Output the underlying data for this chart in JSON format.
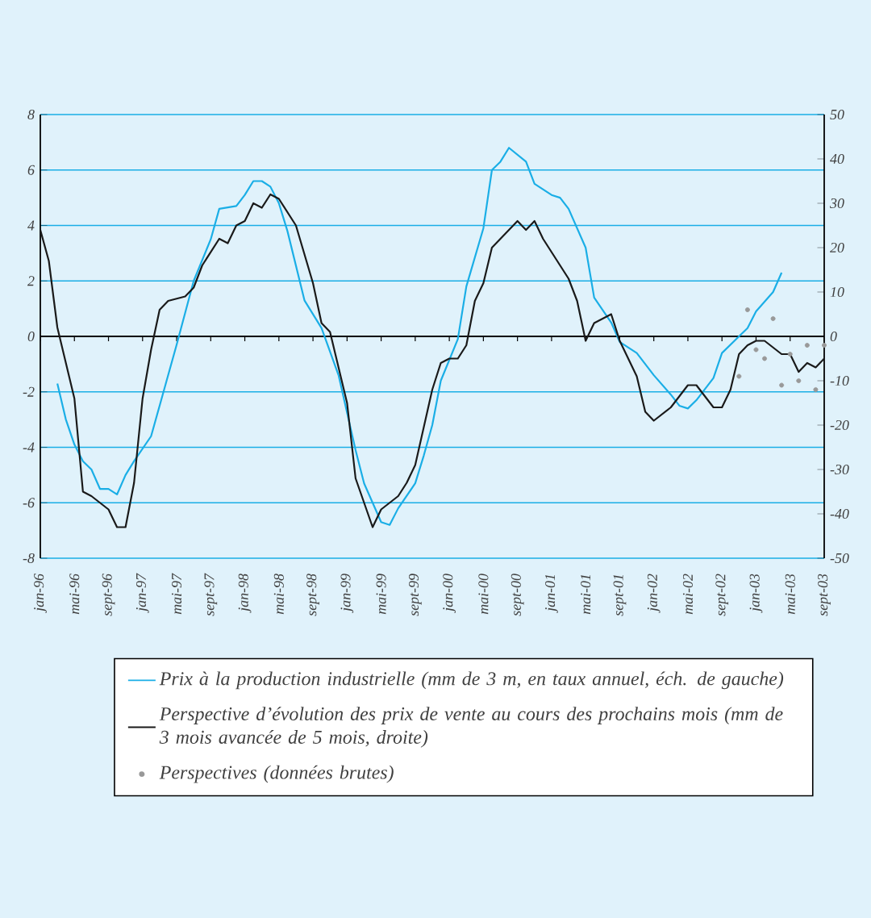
{
  "chart_data": {
    "type": "line",
    "xlim": [
      "1996-01",
      "2003-09"
    ],
    "xticks": [
      {
        "value": "1996-01",
        "label": "jan-96"
      },
      {
        "value": "1996-05",
        "label": "mai-96"
      },
      {
        "value": "1996-09",
        "label": "sept-96"
      },
      {
        "value": "1997-01",
        "label": "jan-97"
      },
      {
        "value": "1997-05",
        "label": "mai-97"
      },
      {
        "value": "1997-09",
        "label": "sept-97"
      },
      {
        "value": "1998-01",
        "label": "jan-98"
      },
      {
        "value": "1998-05",
        "label": "mai-98"
      },
      {
        "value": "1998-09",
        "label": "sept-98"
      },
      {
        "value": "1999-01",
        "label": "jan-99"
      },
      {
        "value": "1999-05",
        "label": "mai-99"
      },
      {
        "value": "1999-09",
        "label": "sept-99"
      },
      {
        "value": "2000-01",
        "label": "jan-00"
      },
      {
        "value": "2000-05",
        "label": "mai-00"
      },
      {
        "value": "2000-09",
        "label": "sept-00"
      },
      {
        "value": "2001-01",
        "label": "jan-01"
      },
      {
        "value": "2001-05",
        "label": "mai-01"
      },
      {
        "value": "2001-09",
        "label": "sept-01"
      },
      {
        "value": "2002-01",
        "label": "jan-02"
      },
      {
        "value": "2002-05",
        "label": "mai-02"
      },
      {
        "value": "2002-09",
        "label": "sept-02"
      },
      {
        "value": "2003-01",
        "label": "jan-03"
      },
      {
        "value": "2003-05",
        "label": "mai-03"
      },
      {
        "value": "2003-09",
        "label": "sept-03"
      }
    ],
    "ylim": [
      -8,
      8
    ],
    "yticks": [
      -8,
      -6,
      -4,
      -2,
      0,
      2,
      4,
      6,
      8
    ],
    "y2lim": [
      -50,
      50
    ],
    "y2ticks": [
      -50,
      -40,
      -30,
      -20,
      -10,
      0,
      10,
      20,
      30,
      40,
      50
    ],
    "grid": "y",
    "legend": "bottom",
    "series": [
      {
        "name": "Prix à la production industrielle (mm de 3 m, en taux annuel, éch. de gauche)",
        "color": "#1aaee6",
        "x": [
          "1996-03",
          "1996-04",
          "1996-05",
          "1996-06",
          "1996-07",
          "1996-08",
          "1996-09",
          "1996-10",
          "1996-11",
          "1996-12",
          "1997-02",
          "1997-03",
          "1997-05",
          "1997-07",
          "1997-09",
          "1997-10",
          "1997-12",
          "1998-01",
          "1998-02",
          "1998-03",
          "1998-04",
          "1998-05",
          "1998-06",
          "1998-08",
          "1998-10",
          "1998-12",
          "1999-02",
          "1999-03",
          "1999-05",
          "1999-06",
          "1999-07",
          "1999-09",
          "1999-10",
          "1999-11",
          "1999-12",
          "2000-02",
          "2000-03",
          "2000-05",
          "2000-06",
          "2000-07",
          "2000-08",
          "2000-10",
          "2000-11",
          "2001-01",
          "2001-02",
          "2001-03",
          "2001-05",
          "2001-06",
          "2001-08",
          "2001-09",
          "2001-11",
          "2002-01",
          "2002-03",
          "2002-04",
          "2002-05",
          "2002-06",
          "2002-08",
          "2002-09",
          "2002-11",
          "2002-12",
          "2003-01",
          "2003-03",
          "2003-04"
        ],
        "values": [
          -1.7,
          -3.0,
          -3.9,
          -4.5,
          -4.8,
          -5.5,
          -5.5,
          -5.7,
          -5.0,
          -4.5,
          -3.6,
          -2.5,
          -0.3,
          2.0,
          3.5,
          4.6,
          4.7,
          5.1,
          5.6,
          5.6,
          5.4,
          4.8,
          3.8,
          1.3,
          0.3,
          -1.4,
          -4.1,
          -5.3,
          -6.7,
          -6.8,
          -6.2,
          -5.3,
          -4.3,
          -3.2,
          -1.6,
          -0.1,
          1.8,
          3.9,
          6.0,
          6.3,
          6.8,
          6.3,
          5.5,
          5.1,
          5.0,
          4.6,
          3.2,
          1.4,
          0.5,
          -0.2,
          -0.6,
          -1.4,
          -2.1,
          -2.5,
          -2.6,
          -2.3,
          -1.5,
          -0.6,
          0.0,
          0.3,
          0.9,
          1.6,
          2.3
        ]
      },
      {
        "name": "Perspective d’évolution des prix de vente au cours des prochains mois (mm de 3 mois avancée de 5 mois, droite)",
        "color": "#1a1a1a",
        "axis": "y2",
        "x": [
          "1996-01",
          "1996-02",
          "1996-03",
          "1996-05",
          "1996-06",
          "1996-07",
          "1996-09",
          "1996-10",
          "1996-11",
          "1996-12",
          "1997-01",
          "1997-02",
          "1997-03",
          "1997-04",
          "1997-06",
          "1997-07",
          "1997-08",
          "1997-10",
          "1997-11",
          "1997-12",
          "1998-01",
          "1998-02",
          "1998-03",
          "1998-04",
          "1998-05",
          "1998-07",
          "1998-09",
          "1998-10",
          "1998-11",
          "1999-01",
          "1999-02",
          "1999-04",
          "1999-05",
          "1999-07",
          "1999-08",
          "1999-09",
          "1999-11",
          "1999-12",
          "2000-01",
          "2000-02",
          "2000-03",
          "2000-04",
          "2000-05",
          "2000-06",
          "2000-08",
          "2000-09",
          "2000-10",
          "2000-11",
          "2000-12",
          "2001-01",
          "2001-03",
          "2001-04",
          "2001-05",
          "2001-06",
          "2001-07",
          "2001-08",
          "2001-09",
          "2001-11",
          "2001-12",
          "2002-01",
          "2002-03",
          "2002-05",
          "2002-06",
          "2002-08",
          "2002-09",
          "2002-10",
          "2002-11",
          "2002-12",
          "2003-01",
          "2003-02",
          "2003-04",
          "2003-05",
          "2003-06",
          "2003-07",
          "2003-08",
          "2003-09"
        ],
        "values": [
          24,
          17,
          2,
          -14,
          -35,
          -36,
          -39,
          -43,
          -43,
          -33,
          -14,
          -3,
          6,
          8,
          9,
          11,
          16,
          22,
          21,
          25,
          26,
          30,
          29,
          32,
          31,
          25,
          12,
          3,
          1,
          -15,
          -32,
          -43,
          -39,
          -36,
          -33,
          -29,
          -12,
          -6,
          -5,
          -5,
          -2,
          8,
          12,
          20,
          24,
          26,
          24,
          26,
          22,
          19,
          13,
          8,
          -1,
          3,
          4,
          5,
          -1,
          -9,
          -17,
          -19,
          -16,
          -11,
          -11,
          -16,
          -16,
          -12,
          -4,
          -2,
          -1,
          -1,
          -4,
          -4,
          -8,
          -6,
          -7,
          -5
        ]
      },
      {
        "name": "Perspectives (données brutes)",
        "type": "scatter",
        "marker": "circle",
        "color": "#999999",
        "axis": "y2",
        "x": [
          "2002-11",
          "2002-12",
          "2003-01",
          "2003-02",
          "2003-03",
          "2003-04",
          "2003-05",
          "2003-06",
          "2003-07",
          "2003-08",
          "2003-09"
        ],
        "values": [
          -9,
          6,
          -3,
          -5,
          4,
          -11,
          -4,
          -10,
          -2,
          -12,
          -2
        ]
      }
    ]
  }
}
